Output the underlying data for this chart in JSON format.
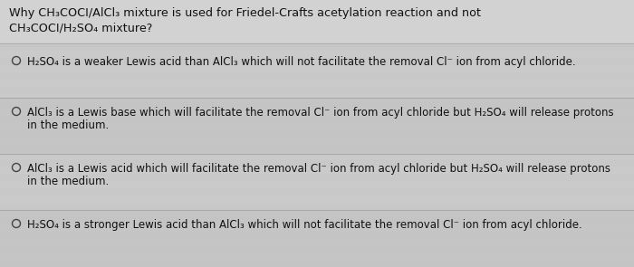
{
  "background_color": "#c8c8c8",
  "title_line1": "Why CH₃COCI/AlCl₃ mixture is used for Friedel-Crafts acetylation reaction and not",
  "title_line2": "CH₃COCI/H₂SO₄ mixture?",
  "options": [
    {
      "text_line1": "H₂SO₄ is a weaker Lewis acid than AlCl₃ which will not facilitate the removal Cl⁻ ion from acyl chloride.",
      "text_line2": null
    },
    {
      "text_line1": "AlCl₃ is a Lewis base which will facilitate the removal Cl⁻ ion from acyl chloride but H₂SO₄ will release protons",
      "text_line2": "in the medium."
    },
    {
      "text_line1": "AlCl₃ is a Lewis acid which will facilitate the removal Cl⁻ ion from acyl chloride but H₂SO₄ will release protons",
      "text_line2": "in the medium."
    },
    {
      "text_line1": "H₂SO₄ is a stronger Lewis acid than AlCl₃ which will not facilitate the removal Cl⁻ ion from acyl chloride.",
      "text_line2": null
    }
  ],
  "font_size_title": 9.2,
  "font_size_options": 8.5,
  "text_color": "#111111",
  "divider_color": "#aaaaaa",
  "circle_color": "#444444",
  "stripe_color": "#bebebe",
  "stripe_alt_color": "#c8c8c8"
}
